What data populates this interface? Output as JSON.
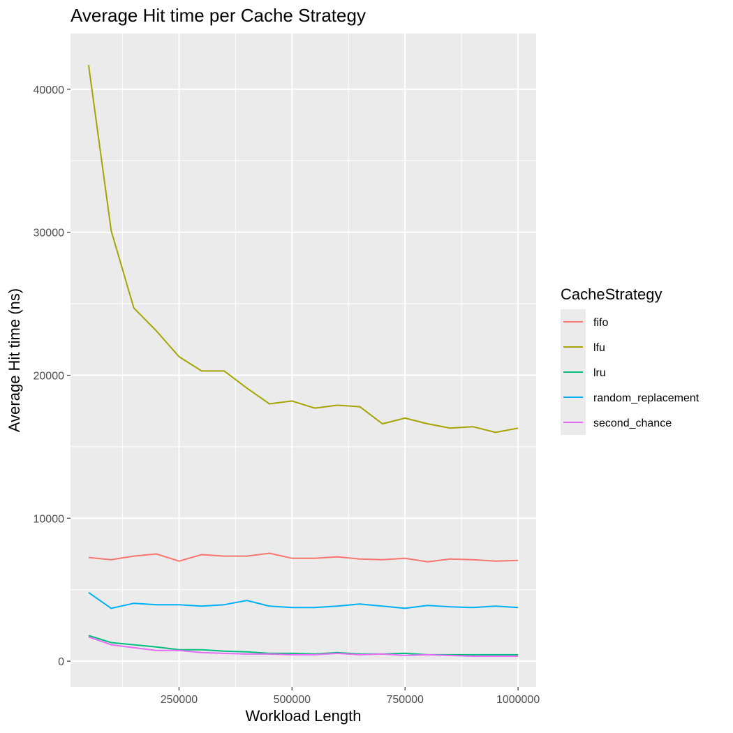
{
  "chart_data": {
    "type": "line",
    "title": "Average Hit time per Cache Strategy",
    "xlabel": "Workload Length",
    "ylabel": "Average Hit time (ns)",
    "xlim": [
      10000,
      1040000
    ],
    "ylim": [
      -1800,
      43900
    ],
    "x_ticks": [
      250000,
      500000,
      750000,
      1000000
    ],
    "y_ticks": [
      0,
      10000,
      20000,
      30000,
      40000
    ],
    "x_tick_labels": [
      "250000",
      "500000",
      "750000",
      "1000000"
    ],
    "y_tick_labels": [
      "0",
      "10000",
      "20000",
      "30000",
      "40000"
    ],
    "grid": true,
    "legend": {
      "title": "CacheStrategy",
      "placement": "right"
    },
    "x": [
      50000,
      100000,
      150000,
      200000,
      250000,
      300000,
      350000,
      400000,
      450000,
      500000,
      550000,
      600000,
      650000,
      700000,
      750000,
      800000,
      850000,
      900000,
      950000,
      1000000
    ],
    "series": [
      {
        "name": "fifo",
        "color": "#F8766D",
        "values": [
          7250,
          7100,
          7350,
          7500,
          7000,
          7450,
          7350,
          7350,
          7550,
          7200,
          7200,
          7300,
          7150,
          7100,
          7200,
          6950,
          7150,
          7100,
          7000,
          7050
        ]
      },
      {
        "name": "lfu",
        "color": "#A3A500",
        "values": [
          41700,
          30100,
          24700,
          23100,
          21300,
          20300,
          20300,
          19100,
          18000,
          18200,
          17700,
          17900,
          17800,
          16600,
          17000,
          16600,
          16300,
          16400,
          16000,
          16300
        ]
      },
      {
        "name": "lru",
        "color": "#00BF7D",
        "values": [
          1800,
          1300,
          1150,
          1000,
          800,
          800,
          700,
          650,
          550,
          550,
          500,
          600,
          500,
          500,
          550,
          450,
          450,
          450,
          450,
          450
        ]
      },
      {
        "name": "random_replacement",
        "color": "#00B0F6",
        "values": [
          4800,
          3700,
          4050,
          3950,
          3950,
          3850,
          3950,
          4250,
          3850,
          3750,
          3750,
          3850,
          4000,
          3850,
          3700,
          3900,
          3800,
          3750,
          3850,
          3750
        ]
      },
      {
        "name": "second_chance",
        "color": "#E76BF3",
        "values": [
          1700,
          1150,
          950,
          750,
          750,
          600,
          550,
          500,
          500,
          450,
          450,
          550,
          450,
          500,
          400,
          450,
          400,
          350,
          350,
          350
        ]
      }
    ]
  }
}
